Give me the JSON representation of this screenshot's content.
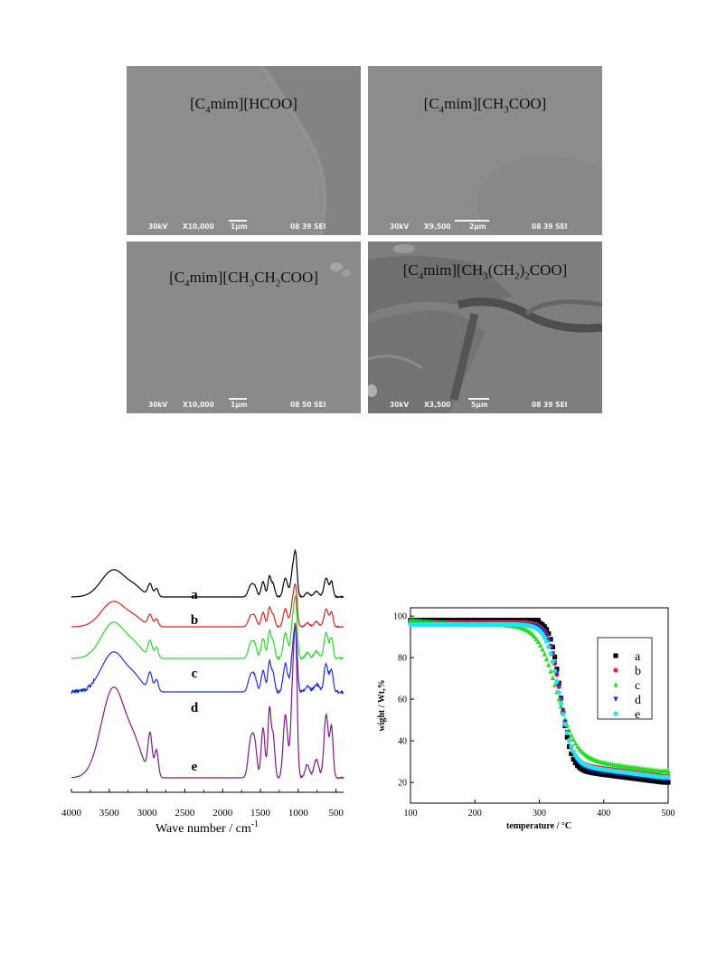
{
  "sem_panels": [
    {
      "label_parts": [
        "[C",
        "4",
        "mim][HCOO]"
      ],
      "voltage": "30kV",
      "magnification": "X10,000",
      "scale": "1µm",
      "code": "08 39 SEI"
    },
    {
      "label_parts": [
        "[C",
        "4",
        "mim][CH",
        "3",
        "COO]"
      ],
      "voltage": "30kV",
      "magnification": "X9,500",
      "scale": "2µm",
      "code": "08 39 SEI"
    },
    {
      "label_parts": [
        "[C",
        "4",
        "mim][CH",
        "3",
        "CH",
        "2",
        "COO]"
      ],
      "voltage": "30kV",
      "magnification": "X10,000",
      "scale": "1µm",
      "code": "08 50 SEI"
    },
    {
      "label_parts": [
        "[C",
        "4",
        "mim][CH",
        "3",
        "(CH",
        "2",
        ")",
        "2",
        "COO]"
      ],
      "voltage": "30kV",
      "magnification": "X3,500",
      "scale": "5µm",
      "code": "08 39 SEI"
    }
  ],
  "chart_data": [
    {
      "type": "line",
      "title": "",
      "xlabel": "Wave number / cm",
      "xlabel_superscript": "-1",
      "ylabel": "",
      "xlim": [
        4000,
        400
      ],
      "xticks": [
        "4000",
        "3500",
        "3000",
        "2500",
        "2000",
        "1500",
        "1000",
        "500"
      ],
      "series": [
        {
          "name": "a",
          "color": "#000000"
        },
        {
          "name": "b",
          "color": "#e0201c"
        },
        {
          "name": "c",
          "color": "#2bd62b"
        },
        {
          "name": "d",
          "color": "#1f2fd6"
        },
        {
          "name": "e",
          "color": "#7d1a86"
        }
      ]
    },
    {
      "type": "scatter",
      "title": "",
      "xlabel": "temperature / °C",
      "ylabel": "wight / Wt,%",
      "xlim": [
        100,
        500
      ],
      "ylim": [
        10,
        104
      ],
      "xticks": [
        100,
        200,
        300,
        400,
        500
      ],
      "yticks": [
        20,
        40,
        60,
        80,
        100
      ],
      "legend_position": "top-right",
      "series": [
        {
          "name": "a",
          "color": "#000000",
          "marker": "square",
          "start": 98,
          "plateau": 98,
          "onset": 300,
          "mid": 333,
          "width": 8,
          "residual": 20
        },
        {
          "name": "b",
          "color": "#e8203a",
          "marker": "circle",
          "start": 97,
          "plateau": 97,
          "onset": 280,
          "mid": 332,
          "width": 9,
          "residual": 23
        },
        {
          "name": "c",
          "color": "#22dd22",
          "marker": "triangle-up",
          "start": 98,
          "plateau": 96,
          "onset": 245,
          "mid": 327,
          "width": 15,
          "residual": 25.5
        },
        {
          "name": "d",
          "color": "#1a2fe0",
          "marker": "triangle-down",
          "start": 96,
          "plateau": 96,
          "onset": 270,
          "mid": 333,
          "width": 9,
          "residual": 21.5
        },
        {
          "name": "e",
          "color": "#22e6e6",
          "marker": "circle",
          "start": 96,
          "plateau": 96,
          "onset": 265,
          "mid": 331,
          "width": 10,
          "residual": 22.5
        }
      ]
    }
  ]
}
